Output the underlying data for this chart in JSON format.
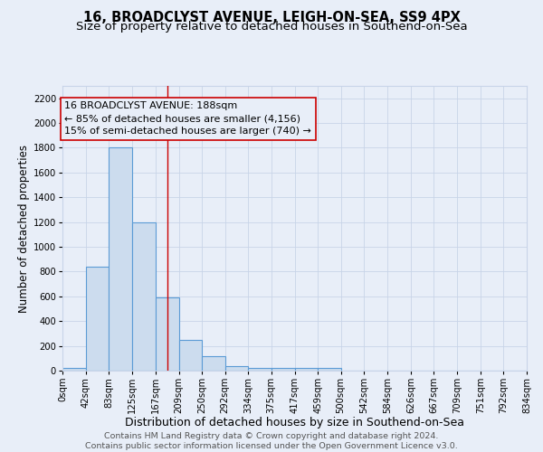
{
  "title1": "16, BROADCLYST AVENUE, LEIGH-ON-SEA, SS9 4PX",
  "title2": "Size of property relative to detached houses in Southend-on-Sea",
  "bar_edges": [
    0,
    42,
    83,
    125,
    167,
    209,
    250,
    292,
    334,
    375,
    417,
    459,
    500,
    542,
    584,
    626,
    667,
    709,
    751,
    792,
    834
  ],
  "bar_heights": [
    25,
    840,
    1800,
    1200,
    590,
    250,
    120,
    40,
    25,
    25,
    20,
    20,
    0,
    0,
    0,
    0,
    0,
    0,
    0,
    0
  ],
  "bar_color": "#ccdcee",
  "bar_edge_color": "#5b9bd5",
  "bar_linewidth": 0.8,
  "red_line_x": 188,
  "red_line_color": "#cc0000",
  "annotation_line1": "16 BROADCLYST AVENUE: 188sqm",
  "annotation_line2": "← 85% of detached houses are smaller (4,156)",
  "annotation_line3": "15% of semi-detached houses are larger (740) →",
  "annotation_fontsize": 8.0,
  "xlabel": "Distribution of detached houses by size in Southend-on-Sea",
  "ylabel": "Number of detached properties",
  "ylim": [
    0,
    2300
  ],
  "yticks": [
    0,
    200,
    400,
    600,
    800,
    1000,
    1200,
    1400,
    1600,
    1800,
    2000,
    2200
  ],
  "xtick_labels": [
    "0sqm",
    "42sqm",
    "83sqm",
    "125sqm",
    "167sqm",
    "209sqm",
    "250sqm",
    "292sqm",
    "334sqm",
    "375sqm",
    "417sqm",
    "459sqm",
    "500sqm",
    "542sqm",
    "584sqm",
    "626sqm",
    "667sqm",
    "709sqm",
    "751sqm",
    "792sqm",
    "834sqm"
  ],
  "grid_color": "#c8d4e8",
  "bg_color": "#e8eef8",
  "footer1": "Contains HM Land Registry data © Crown copyright and database right 2024.",
  "footer2": "Contains public sector information licensed under the Open Government Licence v3.0.",
  "title1_fontsize": 10.5,
  "title2_fontsize": 9.5,
  "xlabel_fontsize": 9,
  "ylabel_fontsize": 8.5,
  "tick_fontsize": 7.2,
  "footer_fontsize": 6.8
}
